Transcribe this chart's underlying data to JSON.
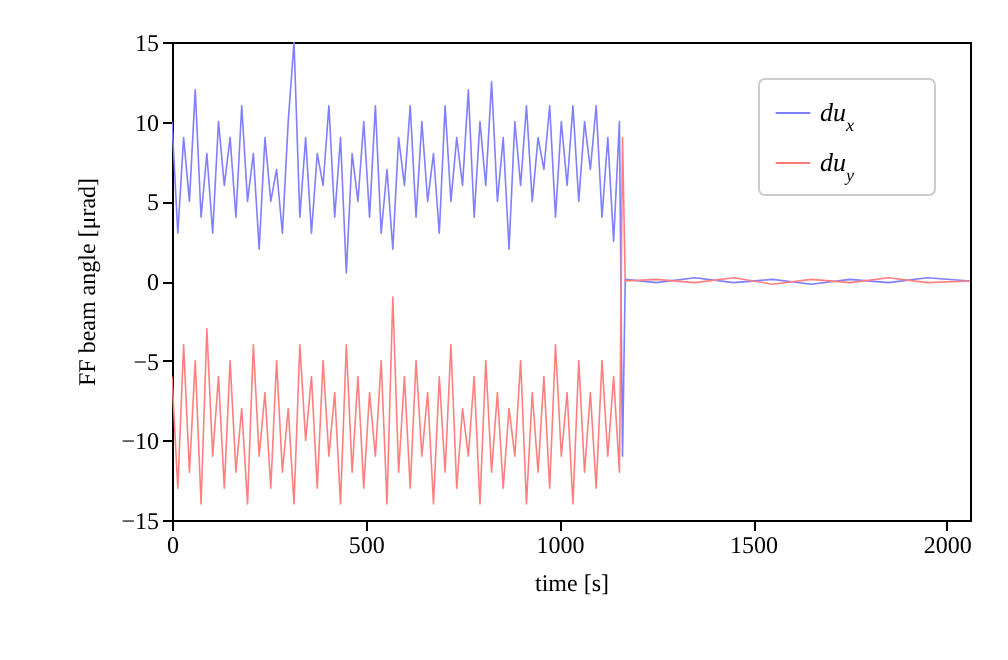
{
  "chart_data": {
    "type": "line",
    "xlabel": "time [s]",
    "ylabel": "FF beam angle [μrad]",
    "xlim": [
      0,
      2060
    ],
    "ylim": [
      -15,
      15
    ],
    "xticks": [
      0,
      500,
      1000,
      1500,
      2000
    ],
    "yticks": [
      -15,
      -10,
      -5,
      0,
      5,
      10,
      15
    ],
    "grid": false,
    "legend": "top right",
    "marker": "none",
    "line_style": "solid",
    "series": [
      {
        "name": "du$_{x}$",
        "color": "#7f7fff",
        "x": [
          0,
          15,
          30,
          45,
          60,
          75,
          90,
          105,
          120,
          135,
          150,
          165,
          180,
          195,
          210,
          225,
          240,
          255,
          270,
          285,
          300,
          315,
          330,
          345,
          360,
          375,
          390,
          405,
          420,
          435,
          450,
          465,
          480,
          495,
          510,
          525,
          540,
          555,
          570,
          585,
          600,
          615,
          630,
          645,
          660,
          675,
          690,
          705,
          720,
          735,
          750,
          765,
          780,
          795,
          810,
          825,
          840,
          855,
          870,
          885,
          900,
          915,
          930,
          945,
          960,
          975,
          990,
          1005,
          1020,
          1035,
          1050,
          1065,
          1080,
          1095,
          1110,
          1125,
          1140,
          1155,
          1163,
          1170,
          1250,
          1350,
          1450,
          1550,
          1650,
          1750,
          1850,
          1950,
          2060
        ],
        "values": [
          10,
          3,
          9,
          5,
          12,
          4,
          8,
          3,
          10,
          6,
          9,
          4,
          11,
          5,
          8,
          2,
          9,
          5,
          7,
          3,
          10,
          15,
          4,
          9,
          3,
          8,
          6,
          11,
          4,
          9,
          0.5,
          8,
          5,
          10,
          4,
          11,
          3,
          7,
          2,
          9,
          6,
          11,
          4,
          10,
          5,
          8,
          3,
          11,
          5,
          9,
          6,
          12,
          4,
          10,
          6,
          12.5,
          5,
          9,
          2,
          10,
          6,
          11,
          5,
          9,
          7,
          11,
          4,
          10,
          6,
          11,
          5,
          10,
          7,
          11,
          4,
          9,
          2.5,
          10,
          -11,
          0.1,
          -0.1,
          0.2,
          -0.1,
          0.1,
          -0.2,
          0.1,
          -0.1,
          0.2,
          0
        ]
      },
      {
        "name": "du$_{y}$",
        "color": "#ff7f7f",
        "x": [
          0,
          15,
          30,
          45,
          60,
          75,
          90,
          105,
          120,
          135,
          150,
          165,
          180,
          195,
          210,
          225,
          240,
          255,
          270,
          285,
          300,
          315,
          330,
          345,
          360,
          375,
          390,
          405,
          420,
          435,
          450,
          465,
          480,
          495,
          510,
          525,
          540,
          555,
          570,
          585,
          600,
          615,
          630,
          645,
          660,
          675,
          690,
          705,
          720,
          735,
          750,
          765,
          780,
          795,
          810,
          825,
          840,
          855,
          870,
          885,
          900,
          915,
          930,
          945,
          960,
          975,
          990,
          1005,
          1020,
          1035,
          1050,
          1065,
          1080,
          1095,
          1110,
          1125,
          1140,
          1155,
          1163,
          1170,
          1250,
          1350,
          1450,
          1550,
          1650,
          1750,
          1850,
          1950,
          2060
        ],
        "values": [
          -6,
          -13,
          -4,
          -12,
          -5,
          -14,
          -3,
          -11,
          -6,
          -13,
          -5,
          -12,
          -8,
          -14,
          -4,
          -11,
          -7,
          -13,
          -5,
          -12,
          -8,
          -14,
          -4,
          -10,
          -6,
          -13,
          -5,
          -11,
          -7,
          -14,
          -4,
          -12,
          -6,
          -13,
          -7,
          -11,
          -5,
          -14,
          -1,
          -12,
          -6,
          -13,
          -5,
          -11,
          -7,
          -14,
          -6,
          -12,
          -4,
          -13,
          -8,
          -11,
          -6,
          -14,
          -5,
          -12,
          -7,
          -13,
          -8,
          -11,
          -5,
          -14,
          -7,
          -12,
          -6,
          -13,
          -4,
          -11,
          -7,
          -14,
          -5,
          -12,
          -7,
          -13,
          -5,
          -11,
          -6,
          -12,
          9,
          0,
          0.1,
          -0.1,
          0.2,
          -0.2,
          0.1,
          -0.1,
          0.2,
          -0.1,
          0
        ]
      }
    ]
  }
}
